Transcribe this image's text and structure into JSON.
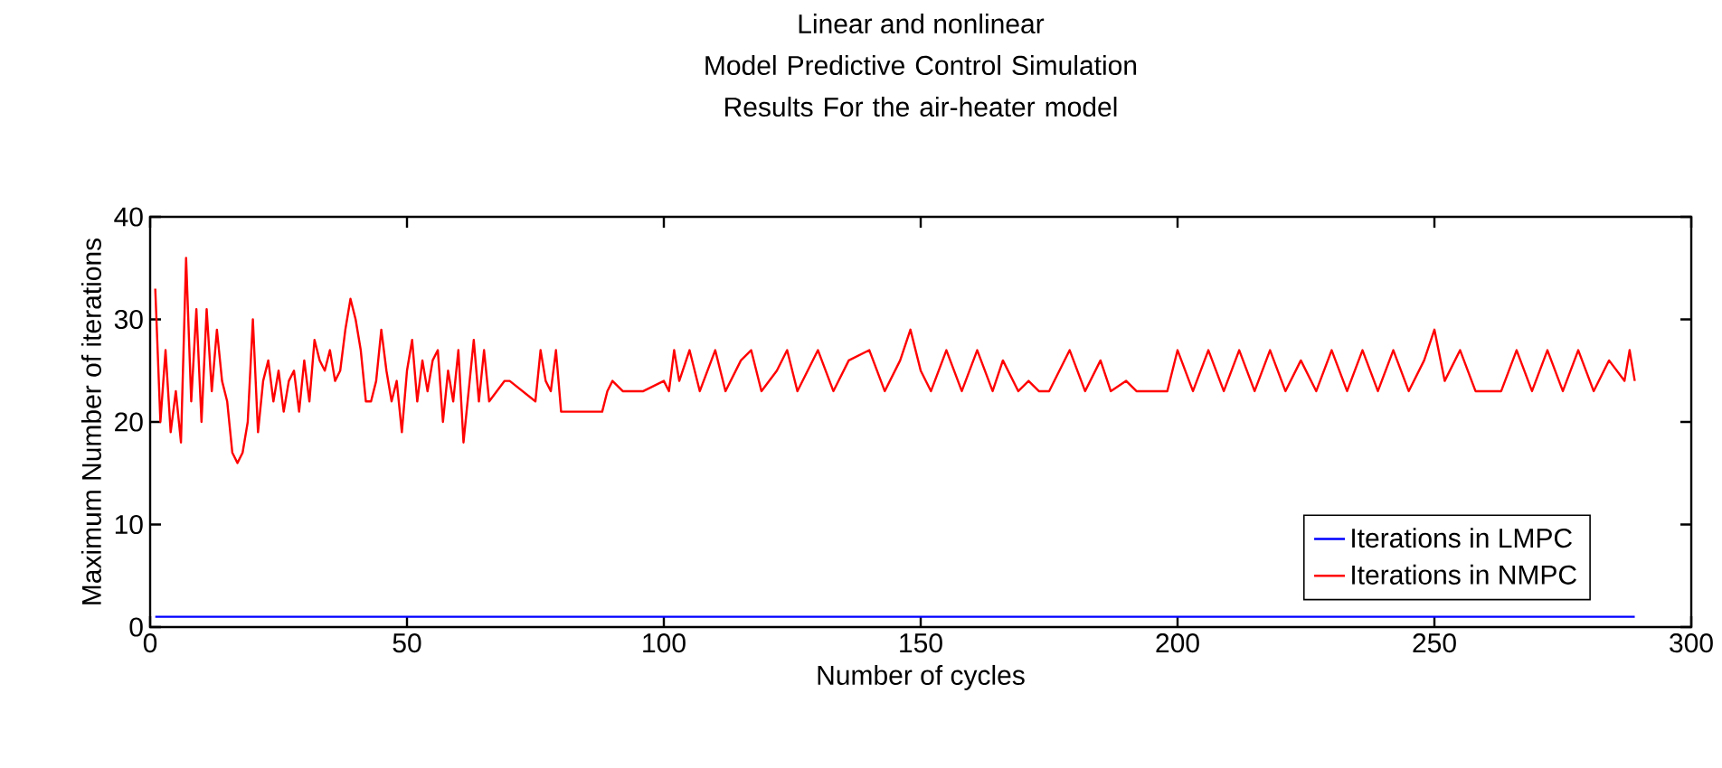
{
  "chart_data": {
    "type": "line",
    "title": "Linear and nonlinear",
    "subtitle": "Model Predictive Control Simulation Results For the air-heater model",
    "xlabel": "Number of cycles",
    "ylabel": "Maximum Number of iterations",
    "xlim": [
      0,
      300
    ],
    "xticks": [
      0,
      50,
      100,
      150,
      200,
      250,
      300
    ],
    "ylim": [
      0,
      40
    ],
    "yticks": [
      0,
      10,
      20,
      30,
      40
    ],
    "legend": "bottom right",
    "grid": false,
    "marker": "none",
    "line_style": "solid",
    "series": [
      {
        "name": "Iterations in LMPC",
        "color": "#0000ff",
        "x": [
          1,
          289
        ],
        "values": [
          1,
          1
        ]
      },
      {
        "name": "Iterations in NMPC",
        "color": "#ff0000",
        "x": [
          1,
          2,
          3,
          4,
          5,
          6,
          7,
          8,
          9,
          10,
          11,
          12,
          13,
          14,
          15,
          16,
          17,
          18,
          19,
          20,
          21,
          22,
          23,
          24,
          25,
          26,
          27,
          28,
          29,
          30,
          31,
          32,
          33,
          34,
          35,
          36,
          37,
          38,
          39,
          40,
          41,
          42,
          43,
          44,
          45,
          46,
          47,
          48,
          49,
          50,
          51,
          52,
          53,
          54,
          55,
          56,
          57,
          58,
          59,
          60,
          61,
          62,
          63,
          64,
          65,
          66,
          69,
          70,
          75,
          76,
          77,
          78,
          79,
          80,
          88,
          89,
          90,
          92,
          96,
          100,
          101,
          102,
          103,
          105,
          107,
          110,
          112,
          115,
          117,
          119,
          122,
          124,
          126,
          130,
          133,
          136,
          140,
          143,
          146,
          148,
          150,
          152,
          155,
          158,
          161,
          164,
          166,
          169,
          171,
          173,
          175,
          179,
          182,
          185,
          187,
          190,
          192,
          195,
          198,
          200,
          203,
          206,
          209,
          212,
          215,
          218,
          221,
          224,
          227,
          230,
          233,
          236,
          239,
          242,
          245,
          248,
          250,
          252,
          255,
          258,
          261,
          263,
          266,
          269,
          272,
          275,
          278,
          281,
          284,
          287,
          288,
          289
        ],
        "values": [
          33,
          20,
          27,
          19,
          23,
          18,
          36,
          22,
          31,
          20,
          31,
          23,
          29,
          24,
          22,
          17,
          16,
          17,
          20,
          30,
          19,
          24,
          26,
          22,
          25,
          21,
          24,
          25,
          21,
          26,
          22,
          28,
          26,
          25,
          27,
          24,
          25,
          29,
          32,
          30,
          27,
          22,
          22,
          24,
          29,
          25,
          22,
          24,
          19,
          25,
          28,
          22,
          26,
          23,
          26,
          27,
          20,
          25,
          22,
          27,
          18,
          23,
          28,
          22,
          27,
          22,
          24,
          24,
          22,
          27,
          24,
          23,
          27,
          21,
          21,
          23,
          24,
          23,
          23,
          24,
          23,
          27,
          24,
          27,
          23,
          27,
          23,
          26,
          27,
          23,
          25,
          27,
          23,
          27,
          23,
          26,
          27,
          23,
          26,
          29,
          25,
          23,
          27,
          23,
          27,
          23,
          26,
          23,
          24,
          23,
          23,
          27,
          23,
          26,
          23,
          24,
          23,
          23,
          23,
          27,
          23,
          27,
          23,
          27,
          23,
          27,
          23,
          26,
          23,
          27,
          23,
          27,
          23,
          27,
          23,
          26,
          29,
          24,
          27,
          23,
          23,
          23,
          27,
          23,
          27,
          23,
          27,
          23,
          26,
          24,
          27,
          24
        ]
      }
    ]
  }
}
